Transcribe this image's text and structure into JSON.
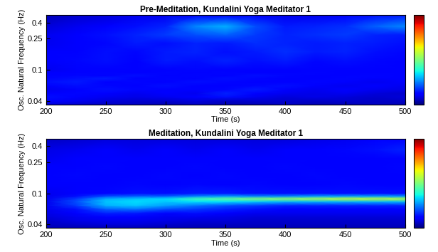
{
  "chart_data": [
    {
      "type": "heatmap",
      "title": "Pre-Meditation, Kundalini Yoga Meditator 1",
      "x_label": "Time (s)",
      "y_label": "Osc. Natural Frequency (Hz)",
      "log": "y",
      "xlim": [
        200,
        500
      ],
      "xticks": [
        200,
        250,
        300,
        350,
        400,
        450,
        500
      ],
      "ylim": [
        0.036,
        0.5
      ],
      "yticks": [
        0.04,
        0.1,
        0.25,
        0.4
      ],
      "x": [
        200,
        225,
        250,
        275,
        300,
        325,
        350,
        375,
        400,
        425,
        450,
        475,
        500
      ],
      "y": [
        0.036,
        0.04,
        0.045,
        0.05,
        0.056,
        0.063,
        0.07,
        0.078,
        0.085,
        0.092,
        0.1,
        0.13,
        0.17,
        0.22,
        0.28,
        0.36,
        0.5
      ],
      "colorbar_range": [
        0,
        1
      ],
      "cells": [
        [
          0.08,
          0.07,
          0.06,
          0.06,
          0.05,
          0.06,
          0.05,
          0.05,
          0.06,
          0.05,
          0.05,
          0.06,
          0.05
        ],
        [
          0.12,
          0.1,
          0.08,
          0.07,
          0.07,
          0.08,
          0.06,
          0.07,
          0.07,
          0.06,
          0.07,
          0.06,
          0.06
        ],
        [
          0.14,
          0.12,
          0.1,
          0.09,
          0.1,
          0.12,
          0.14,
          0.1,
          0.08,
          0.09,
          0.08,
          0.07,
          0.08
        ],
        [
          0.12,
          0.13,
          0.12,
          0.1,
          0.12,
          0.1,
          0.16,
          0.12,
          0.1,
          0.09,
          0.1,
          0.08,
          0.07
        ],
        [
          0.1,
          0.12,
          0.14,
          0.13,
          0.11,
          0.12,
          0.13,
          0.15,
          0.12,
          0.1,
          0.12,
          0.1,
          0.09
        ],
        [
          0.12,
          0.14,
          0.13,
          0.12,
          0.14,
          0.12,
          0.11,
          0.13,
          0.14,
          0.12,
          0.1,
          0.11,
          0.1
        ],
        [
          0.14,
          0.15,
          0.12,
          0.13,
          0.12,
          0.14,
          0.13,
          0.12,
          0.12,
          0.13,
          0.12,
          0.1,
          0.12
        ],
        [
          0.13,
          0.14,
          0.15,
          0.12,
          0.13,
          0.12,
          0.14,
          0.13,
          0.11,
          0.12,
          0.13,
          0.12,
          0.11
        ],
        [
          0.12,
          0.13,
          0.12,
          0.14,
          0.12,
          0.13,
          0.12,
          0.14,
          0.13,
          0.12,
          0.11,
          0.13,
          0.12
        ],
        [
          0.11,
          0.12,
          0.13,
          0.12,
          0.13,
          0.12,
          0.13,
          0.12,
          0.12,
          0.13,
          0.12,
          0.12,
          0.11
        ],
        [
          0.1,
          0.11,
          0.12,
          0.11,
          0.12,
          0.13,
          0.12,
          0.11,
          0.12,
          0.12,
          0.11,
          0.12,
          0.12
        ],
        [
          0.12,
          0.13,
          0.14,
          0.12,
          0.15,
          0.14,
          0.16,
          0.14,
          0.15,
          0.13,
          0.14,
          0.13,
          0.12
        ],
        [
          0.11,
          0.12,
          0.14,
          0.13,
          0.15,
          0.16,
          0.14,
          0.15,
          0.17,
          0.15,
          0.16,
          0.14,
          0.13
        ],
        [
          0.1,
          0.12,
          0.13,
          0.15,
          0.14,
          0.16,
          0.15,
          0.17,
          0.16,
          0.15,
          0.16,
          0.15,
          0.14
        ],
        [
          0.1,
          0.12,
          0.14,
          0.16,
          0.18,
          0.2,
          0.22,
          0.18,
          0.16,
          0.17,
          0.18,
          0.16,
          0.15
        ],
        [
          0.08,
          0.1,
          0.12,
          0.14,
          0.16,
          0.26,
          0.3,
          0.2,
          0.15,
          0.16,
          0.17,
          0.22,
          0.26
        ],
        [
          0.05,
          0.07,
          0.08,
          0.1,
          0.1,
          0.12,
          0.12,
          0.11,
          0.1,
          0.1,
          0.12,
          0.14,
          0.15
        ]
      ]
    },
    {
      "type": "heatmap",
      "title": "Meditation, Kundalini Yoga Meditator 1",
      "x_label": "Time (s)",
      "y_label": "Osc. Natural Frequency (Hz)",
      "log": "y",
      "xlim": [
        200,
        500
      ],
      "xticks": [
        200,
        250,
        300,
        350,
        400,
        450,
        500
      ],
      "ylim": [
        0.036,
        0.5
      ],
      "yticks": [
        0.04,
        0.1,
        0.25,
        0.4
      ],
      "x": [
        200,
        225,
        250,
        275,
        300,
        325,
        350,
        375,
        400,
        425,
        450,
        475,
        500
      ],
      "y": [
        0.036,
        0.04,
        0.045,
        0.05,
        0.056,
        0.063,
        0.07,
        0.078,
        0.085,
        0.092,
        0.1,
        0.13,
        0.17,
        0.22,
        0.28,
        0.36,
        0.5
      ],
      "colorbar_range": [
        0,
        1
      ],
      "cells": [
        [
          0.05,
          0.05,
          0.05,
          0.05,
          0.05,
          0.05,
          0.05,
          0.05,
          0.05,
          0.05,
          0.05,
          0.05,
          0.05
        ],
        [
          0.06,
          0.07,
          0.08,
          0.08,
          0.07,
          0.06,
          0.06,
          0.06,
          0.06,
          0.06,
          0.06,
          0.06,
          0.06
        ],
        [
          0.07,
          0.09,
          0.1,
          0.1,
          0.09,
          0.08,
          0.08,
          0.07,
          0.07,
          0.07,
          0.07,
          0.07,
          0.07
        ],
        [
          0.08,
          0.1,
          0.12,
          0.12,
          0.1,
          0.1,
          0.09,
          0.08,
          0.08,
          0.08,
          0.08,
          0.08,
          0.08
        ],
        [
          0.09,
          0.12,
          0.16,
          0.15,
          0.13,
          0.14,
          0.12,
          0.1,
          0.1,
          0.1,
          0.1,
          0.1,
          0.1
        ],
        [
          0.1,
          0.14,
          0.22,
          0.24,
          0.2,
          0.18,
          0.16,
          0.14,
          0.12,
          0.12,
          0.12,
          0.12,
          0.12
        ],
        [
          0.1,
          0.18,
          0.3,
          0.32,
          0.28,
          0.24,
          0.2,
          0.18,
          0.16,
          0.16,
          0.16,
          0.16,
          0.16
        ],
        [
          0.1,
          0.2,
          0.32,
          0.34,
          0.32,
          0.34,
          0.34,
          0.32,
          0.3,
          0.3,
          0.3,
          0.3,
          0.3
        ],
        [
          0.1,
          0.18,
          0.3,
          0.32,
          0.34,
          0.42,
          0.46,
          0.5,
          0.52,
          0.55,
          0.58,
          0.58,
          0.56
        ],
        [
          0.1,
          0.14,
          0.2,
          0.22,
          0.22,
          0.26,
          0.28,
          0.26,
          0.26,
          0.28,
          0.28,
          0.28,
          0.27
        ],
        [
          0.1,
          0.12,
          0.13,
          0.14,
          0.14,
          0.15,
          0.15,
          0.14,
          0.14,
          0.14,
          0.14,
          0.14,
          0.14
        ],
        [
          0.11,
          0.12,
          0.12,
          0.13,
          0.12,
          0.13,
          0.12,
          0.13,
          0.12,
          0.12,
          0.13,
          0.12,
          0.12
        ],
        [
          0.12,
          0.13,
          0.12,
          0.12,
          0.13,
          0.12,
          0.13,
          0.12,
          0.12,
          0.13,
          0.12,
          0.12,
          0.12
        ],
        [
          0.11,
          0.12,
          0.13,
          0.12,
          0.12,
          0.13,
          0.12,
          0.12,
          0.13,
          0.12,
          0.12,
          0.12,
          0.13
        ],
        [
          0.1,
          0.11,
          0.12,
          0.12,
          0.11,
          0.12,
          0.12,
          0.11,
          0.12,
          0.12,
          0.11,
          0.12,
          0.12
        ],
        [
          0.09,
          0.1,
          0.11,
          0.1,
          0.11,
          0.1,
          0.11,
          0.1,
          0.11,
          0.12,
          0.13,
          0.14,
          0.16
        ],
        [
          0.06,
          0.07,
          0.08,
          0.08,
          0.08,
          0.08,
          0.08,
          0.08,
          0.08,
          0.09,
          0.1,
          0.11,
          0.12
        ]
      ]
    }
  ]
}
